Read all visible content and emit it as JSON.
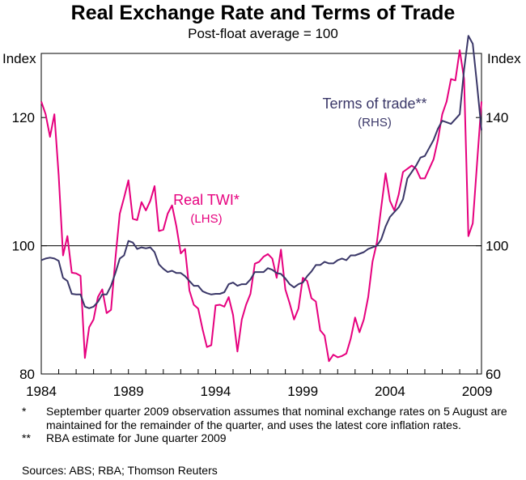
{
  "title": "Real Exchange Rate and Terms of Trade",
  "subtitle": "Post-float average = 100",
  "chart_data": {
    "type": "line",
    "x_ticks": [
      "1984",
      "1989",
      "1994",
      "1999",
      "2004",
      "2009"
    ],
    "x_range": [
      1984,
      2009.25
    ],
    "left_axis": {
      "label": "Index",
      "range": [
        80,
        130
      ],
      "ticks": [
        "80",
        "100",
        "120"
      ],
      "tick_values": [
        80,
        100,
        120
      ]
    },
    "right_axis": {
      "label": "Index",
      "range": [
        60,
        160
      ],
      "ticks": [
        "60",
        "100",
        "140"
      ],
      "tick_values": [
        60,
        100,
        140
      ]
    },
    "reference_line": {
      "axis": "left",
      "value": 100
    },
    "series": [
      {
        "name": "Real TWI*",
        "axis_note": "(LHS)",
        "axis": "left",
        "color": "#e6007e",
        "points": [
          [
            1984.0,
            122.5
          ],
          [
            1984.25,
            120.5
          ],
          [
            1984.5,
            117.0
          ],
          [
            1984.75,
            120.5
          ],
          [
            1985.0,
            111.0
          ],
          [
            1985.25,
            98.5
          ],
          [
            1985.5,
            101.5
          ],
          [
            1985.75,
            95.8
          ],
          [
            1986.0,
            95.7
          ],
          [
            1986.25,
            95.3
          ],
          [
            1986.5,
            82.5
          ],
          [
            1986.75,
            87.3
          ],
          [
            1987.0,
            88.5
          ],
          [
            1987.25,
            92.0
          ],
          [
            1987.5,
            93.2
          ],
          [
            1987.75,
            89.5
          ],
          [
            1988.0,
            90.0
          ],
          [
            1988.25,
            98.0
          ],
          [
            1988.5,
            105.0
          ],
          [
            1988.75,
            107.5
          ],
          [
            1989.0,
            110.2
          ],
          [
            1989.25,
            104.2
          ],
          [
            1989.5,
            104.0
          ],
          [
            1989.75,
            106.8
          ],
          [
            1990.0,
            105.5
          ],
          [
            1990.25,
            107.0
          ],
          [
            1990.5,
            109.3
          ],
          [
            1990.75,
            102.3
          ],
          [
            1991.0,
            102.5
          ],
          [
            1991.25,
            105.0
          ],
          [
            1991.5,
            106.3
          ],
          [
            1991.75,
            103.0
          ],
          [
            1992.0,
            98.8
          ],
          [
            1992.25,
            99.5
          ],
          [
            1992.5,
            93.0
          ],
          [
            1992.75,
            90.8
          ],
          [
            1993.0,
            90.2
          ],
          [
            1993.25,
            87.0
          ],
          [
            1993.5,
            84.2
          ],
          [
            1993.75,
            84.5
          ],
          [
            1994.0,
            90.7
          ],
          [
            1994.25,
            90.8
          ],
          [
            1994.5,
            90.5
          ],
          [
            1994.75,
            92.0
          ],
          [
            1995.0,
            89.2
          ],
          [
            1995.25,
            83.5
          ],
          [
            1995.5,
            88.5
          ],
          [
            1995.75,
            90.8
          ],
          [
            1996.0,
            92.5
          ],
          [
            1996.25,
            97.2
          ],
          [
            1996.5,
            97.5
          ],
          [
            1996.75,
            98.3
          ],
          [
            1997.0,
            98.7
          ],
          [
            1997.25,
            98.0
          ],
          [
            1997.5,
            95.0
          ],
          [
            1997.75,
            99.4
          ],
          [
            1998.0,
            93.2
          ],
          [
            1998.25,
            91.0
          ],
          [
            1998.5,
            88.5
          ],
          [
            1998.75,
            90.2
          ],
          [
            1999.0,
            95.0
          ],
          [
            1999.25,
            94.5
          ],
          [
            1999.5,
            91.8
          ],
          [
            1999.75,
            91.3
          ],
          [
            2000.0,
            86.8
          ],
          [
            2000.25,
            86.0
          ],
          [
            2000.5,
            82.0
          ],
          [
            2000.75,
            83.0
          ],
          [
            2001.0,
            82.6
          ],
          [
            2001.25,
            82.8
          ],
          [
            2001.5,
            83.2
          ],
          [
            2001.75,
            85.5
          ],
          [
            2002.0,
            88.8
          ],
          [
            2002.25,
            86.5
          ],
          [
            2002.5,
            88.5
          ],
          [
            2002.75,
            92.0
          ],
          [
            2003.0,
            97.5
          ],
          [
            2003.25,
            100.5
          ],
          [
            2003.5,
            106.0
          ],
          [
            2003.75,
            111.3
          ],
          [
            2004.0,
            107.0
          ],
          [
            2004.25,
            105.5
          ],
          [
            2004.5,
            108.0
          ],
          [
            2004.75,
            111.5
          ],
          [
            2005.0,
            112.0
          ],
          [
            2005.25,
            112.5
          ],
          [
            2005.5,
            112.0
          ],
          [
            2005.75,
            110.5
          ],
          [
            2006.0,
            110.5
          ],
          [
            2006.25,
            112.0
          ],
          [
            2006.5,
            113.5
          ],
          [
            2006.75,
            116.5
          ],
          [
            2007.0,
            120.5
          ],
          [
            2007.25,
            122.5
          ],
          [
            2007.5,
            126.0
          ],
          [
            2007.75,
            125.8
          ],
          [
            2008.0,
            130.5
          ],
          [
            2008.25,
            126.0
          ],
          [
            2008.5,
            101.5
          ],
          [
            2008.75,
            103.5
          ],
          [
            2009.0,
            113.0
          ],
          [
            2009.25,
            122.5
          ]
        ]
      },
      {
        "name": "Terms of trade**",
        "axis_note": "(RHS)",
        "axis": "right",
        "color": "#3a3768",
        "points": [
          [
            1984.0,
            95.5
          ],
          [
            1984.25,
            96.0
          ],
          [
            1984.5,
            96.3
          ],
          [
            1984.75,
            96.0
          ],
          [
            1985.0,
            95.3
          ],
          [
            1985.25,
            90.0
          ],
          [
            1985.5,
            89.0
          ],
          [
            1985.75,
            85.0
          ],
          [
            1986.0,
            84.8
          ],
          [
            1986.25,
            84.8
          ],
          [
            1986.5,
            81.0
          ],
          [
            1986.75,
            80.5
          ],
          [
            1987.0,
            81.0
          ],
          [
            1987.25,
            82.5
          ],
          [
            1987.5,
            84.8
          ],
          [
            1987.75,
            84.8
          ],
          [
            1988.0,
            87.5
          ],
          [
            1988.25,
            91.5
          ],
          [
            1988.5,
            96.0
          ],
          [
            1988.75,
            97.0
          ],
          [
            1989.0,
            101.5
          ],
          [
            1989.25,
            101.0
          ],
          [
            1989.5,
            99.0
          ],
          [
            1989.75,
            99.5
          ],
          [
            1990.0,
            99.2
          ],
          [
            1990.25,
            99.5
          ],
          [
            1990.5,
            98.0
          ],
          [
            1990.75,
            94.2
          ],
          [
            1991.0,
            92.8
          ],
          [
            1991.25,
            91.8
          ],
          [
            1991.5,
            92.2
          ],
          [
            1991.75,
            91.5
          ],
          [
            1992.0,
            91.5
          ],
          [
            1992.25,
            90.5
          ],
          [
            1992.5,
            89.0
          ],
          [
            1992.75,
            87.5
          ],
          [
            1993.0,
            87.5
          ],
          [
            1993.25,
            85.8
          ],
          [
            1993.5,
            85.2
          ],
          [
            1993.75,
            84.8
          ],
          [
            1994.0,
            85.0
          ],
          [
            1994.25,
            85.0
          ],
          [
            1994.5,
            85.5
          ],
          [
            1994.75,
            88.0
          ],
          [
            1995.0,
            88.5
          ],
          [
            1995.25,
            87.5
          ],
          [
            1995.5,
            88.0
          ],
          [
            1995.75,
            88.0
          ],
          [
            1996.0,
            89.5
          ],
          [
            1996.25,
            91.8
          ],
          [
            1996.5,
            91.8
          ],
          [
            1996.75,
            91.8
          ],
          [
            1997.0,
            93.0
          ],
          [
            1997.25,
            92.5
          ],
          [
            1997.5,
            91.5
          ],
          [
            1997.75,
            91.2
          ],
          [
            1998.0,
            89.8
          ],
          [
            1998.25,
            88.0
          ],
          [
            1998.5,
            87.0
          ],
          [
            1998.75,
            88.0
          ],
          [
            1999.0,
            88.5
          ],
          [
            1999.25,
            90.5
          ],
          [
            1999.5,
            92.0
          ],
          [
            1999.75,
            94.0
          ],
          [
            2000.0,
            94.0
          ],
          [
            2000.25,
            95.0
          ],
          [
            2000.5,
            94.5
          ],
          [
            2000.75,
            94.5
          ],
          [
            2001.0,
            95.5
          ],
          [
            2001.25,
            96.0
          ],
          [
            2001.5,
            95.5
          ],
          [
            2001.75,
            97.0
          ],
          [
            2002.0,
            97.0
          ],
          [
            2002.25,
            97.5
          ],
          [
            2002.5,
            98.0
          ],
          [
            2002.75,
            99.0
          ],
          [
            2003.0,
            99.5
          ],
          [
            2003.25,
            100.0
          ],
          [
            2003.5,
            102.0
          ],
          [
            2003.75,
            106.0
          ],
          [
            2004.0,
            109.0
          ],
          [
            2004.25,
            110.5
          ],
          [
            2004.5,
            112.0
          ],
          [
            2004.75,
            114.5
          ],
          [
            2005.0,
            121.0
          ],
          [
            2005.25,
            123.0
          ],
          [
            2005.5,
            125.0
          ],
          [
            2005.75,
            127.5
          ],
          [
            2006.0,
            128.0
          ],
          [
            2006.25,
            130.5
          ],
          [
            2006.5,
            133.0
          ],
          [
            2006.75,
            136.5
          ],
          [
            2007.0,
            139.0
          ],
          [
            2007.25,
            138.5
          ],
          [
            2007.5,
            138.0
          ],
          [
            2007.75,
            139.5
          ],
          [
            2008.0,
            141.0
          ],
          [
            2008.25,
            155.0
          ],
          [
            2008.5,
            165.5
          ],
          [
            2008.75,
            163.0
          ],
          [
            2009.0,
            150.0
          ],
          [
            2009.25,
            136.0
          ]
        ]
      }
    ]
  },
  "notes": [
    {
      "mark": "*",
      "text": "September quarter 2009 observation assumes that nominal exchange rates on 5 August are maintained for the remainder of the quarter, and uses the latest core inflation rates."
    },
    {
      "mark": "**",
      "text": "RBA estimate for June quarter 2009"
    }
  ],
  "sources": "Sources: ABS; RBA; Thomson Reuters"
}
